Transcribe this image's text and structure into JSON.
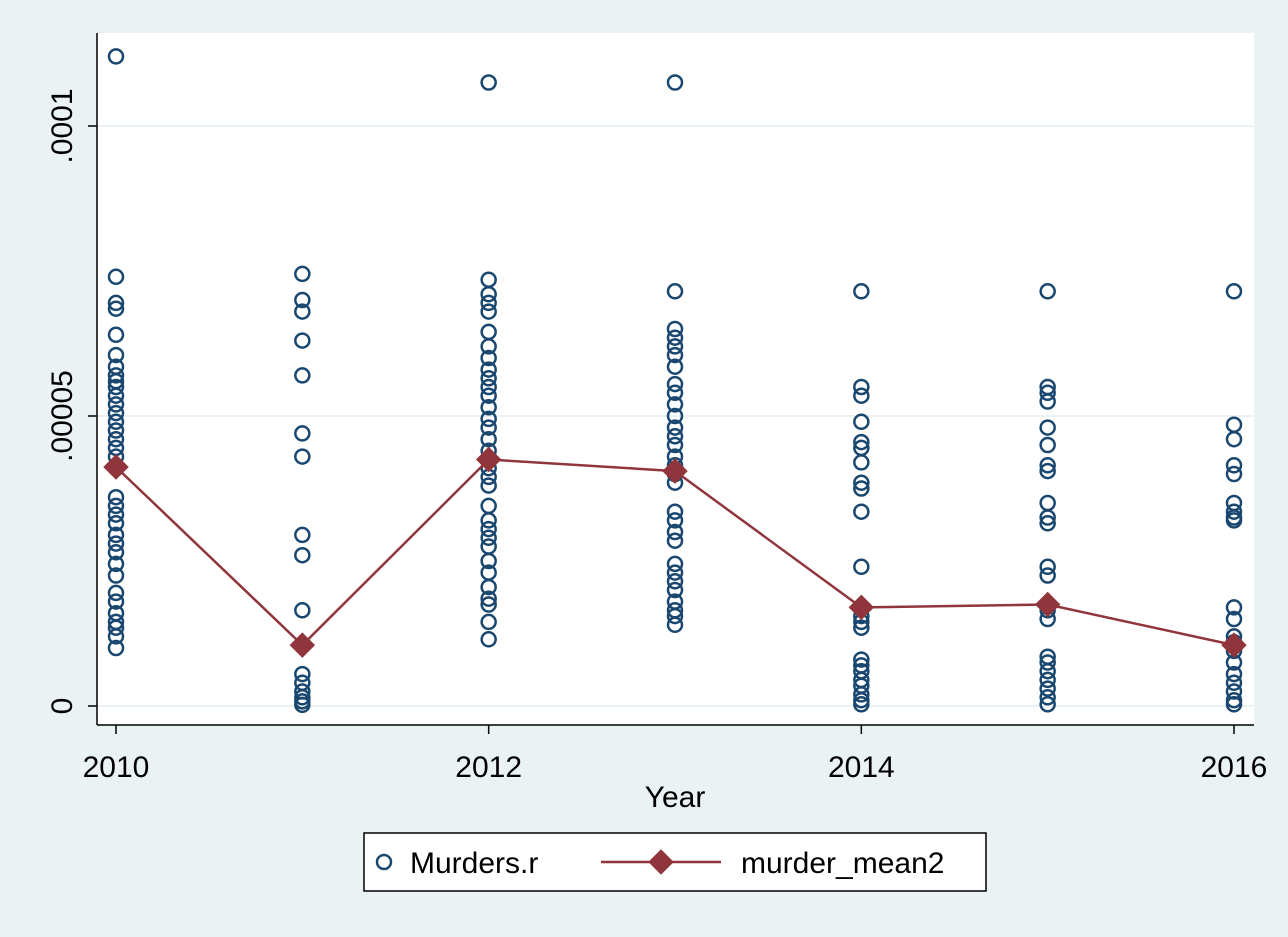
{
  "chart_data": {
    "type": "scatter",
    "title": "",
    "xlabel": "Year",
    "ylabel": "",
    "xlim": [
      2010,
      2016
    ],
    "ylim": [
      0,
      0.0001
    ],
    "x_ticks": [
      2010,
      2012,
      2014,
      2016
    ],
    "x_tick_labels": [
      "2010",
      "2012",
      "2014",
      "2016"
    ],
    "y_ticks": [
      0,
      5e-05,
      0.0001
    ],
    "y_tick_labels": [
      "0",
      ".00005",
      ".0001"
    ],
    "grid": true,
    "legend_position": "bottom",
    "colors": {
      "scatter": "#1a476f",
      "line": "#90353b",
      "background": "#eaf2f3",
      "plot_bg": "#ffffff",
      "grid": "#eaf2f3"
    },
    "series": [
      {
        "name": "Murders.r",
        "type": "scatter",
        "marker": "hollow-circle",
        "points": [
          [
            2010,
            0.000112
          ],
          [
            2010,
            7.4e-05
          ],
          [
            2010,
            6.95e-05
          ],
          [
            2010,
            6.85e-05
          ],
          [
            2010,
            6.4e-05
          ],
          [
            2010,
            6.05e-05
          ],
          [
            2010,
            5.85e-05
          ],
          [
            2010,
            5.7e-05
          ],
          [
            2010,
            5.6e-05
          ],
          [
            2010,
            5.5e-05
          ],
          [
            2010,
            5.35e-05
          ],
          [
            2010,
            5.2e-05
          ],
          [
            2010,
            5.05e-05
          ],
          [
            2010,
            4.9e-05
          ],
          [
            2010,
            4.75e-05
          ],
          [
            2010,
            4.6e-05
          ],
          [
            2010,
            4.45e-05
          ],
          [
            2010,
            4.3e-05
          ],
          [
            2010,
            4.1e-05
          ],
          [
            2010,
            3.6e-05
          ],
          [
            2010,
            3.45e-05
          ],
          [
            2010,
            3.3e-05
          ],
          [
            2010,
            3.15e-05
          ],
          [
            2010,
            2.95e-05
          ],
          [
            2010,
            2.8e-05
          ],
          [
            2010,
            2.65e-05
          ],
          [
            2010,
            2.45e-05
          ],
          [
            2010,
            2.25e-05
          ],
          [
            2010,
            1.95e-05
          ],
          [
            2010,
            1.8e-05
          ],
          [
            2010,
            1.6e-05
          ],
          [
            2010,
            1.45e-05
          ],
          [
            2010,
            1.35e-05
          ],
          [
            2010,
            1.2e-05
          ],
          [
            2010,
            1e-05
          ],
          [
            2011,
            7.45e-05
          ],
          [
            2011,
            7e-05
          ],
          [
            2011,
            6.8e-05
          ],
          [
            2011,
            6.3e-05
          ],
          [
            2011,
            5.7e-05
          ],
          [
            2011,
            4.7e-05
          ],
          [
            2011,
            4.3e-05
          ],
          [
            2011,
            2.95e-05
          ],
          [
            2011,
            2.6e-05
          ],
          [
            2011,
            1.65e-05
          ],
          [
            2011,
            5.5e-06
          ],
          [
            2011,
            4e-06
          ],
          [
            2011,
            2.5e-06
          ],
          [
            2011,
            1.5e-06
          ],
          [
            2011,
            8e-07
          ],
          [
            2011,
            2e-07
          ],
          [
            2012,
            0.0001075
          ],
          [
            2012,
            7.35e-05
          ],
          [
            2012,
            7.1e-05
          ],
          [
            2012,
            6.95e-05
          ],
          [
            2012,
            6.8e-05
          ],
          [
            2012,
            6.45e-05
          ],
          [
            2012,
            6.2e-05
          ],
          [
            2012,
            6e-05
          ],
          [
            2012,
            5.8e-05
          ],
          [
            2012,
            5.65e-05
          ],
          [
            2012,
            5.5e-05
          ],
          [
            2012,
            5.35e-05
          ],
          [
            2012,
            5.15e-05
          ],
          [
            2012,
            4.95e-05
          ],
          [
            2012,
            4.8e-05
          ],
          [
            2012,
            4.6e-05
          ],
          [
            2012,
            4.4e-05
          ],
          [
            2012,
            4.25e-05
          ],
          [
            2012,
            4.1e-05
          ],
          [
            2012,
            3.95e-05
          ],
          [
            2012,
            3.8e-05
          ],
          [
            2012,
            3.45e-05
          ],
          [
            2012,
            3.2e-05
          ],
          [
            2012,
            3.05e-05
          ],
          [
            2012,
            2.9e-05
          ],
          [
            2012,
            2.75e-05
          ],
          [
            2012,
            2.5e-05
          ],
          [
            2012,
            2.3e-05
          ],
          [
            2012,
            2.05e-05
          ],
          [
            2012,
            1.85e-05
          ],
          [
            2012,
            1.75e-05
          ],
          [
            2012,
            1.45e-05
          ],
          [
            2012,
            1.15e-05
          ],
          [
            2013,
            0.0001075
          ],
          [
            2013,
            7.15e-05
          ],
          [
            2013,
            6.5e-05
          ],
          [
            2013,
            6.35e-05
          ],
          [
            2013,
            6.2e-05
          ],
          [
            2013,
            6.05e-05
          ],
          [
            2013,
            5.85e-05
          ],
          [
            2013,
            5.55e-05
          ],
          [
            2013,
            5.4e-05
          ],
          [
            2013,
            5.2e-05
          ],
          [
            2013,
            5e-05
          ],
          [
            2013,
            4.8e-05
          ],
          [
            2013,
            4.65e-05
          ],
          [
            2013,
            4.5e-05
          ],
          [
            2013,
            4.3e-05
          ],
          [
            2013,
            4.15e-05
          ],
          [
            2013,
            4e-05
          ],
          [
            2013,
            3.85e-05
          ],
          [
            2013,
            3.35e-05
          ],
          [
            2013,
            3.2e-05
          ],
          [
            2013,
            3e-05
          ],
          [
            2013,
            2.85e-05
          ],
          [
            2013,
            2.45e-05
          ],
          [
            2013,
            2.3e-05
          ],
          [
            2013,
            2.15e-05
          ],
          [
            2013,
            2e-05
          ],
          [
            2013,
            1.8e-05
          ],
          [
            2013,
            1.65e-05
          ],
          [
            2013,
            1.55e-05
          ],
          [
            2013,
            1.4e-05
          ],
          [
            2014,
            7.15e-05
          ],
          [
            2014,
            5.5e-05
          ],
          [
            2014,
            5.35e-05
          ],
          [
            2014,
            4.9e-05
          ],
          [
            2014,
            4.55e-05
          ],
          [
            2014,
            4.45e-05
          ],
          [
            2014,
            4.2e-05
          ],
          [
            2014,
            3.85e-05
          ],
          [
            2014,
            3.75e-05
          ],
          [
            2014,
            3.35e-05
          ],
          [
            2014,
            2.4e-05
          ],
          [
            2014,
            1.55e-05
          ],
          [
            2014,
            1.45e-05
          ],
          [
            2014,
            1.35e-05
          ],
          [
            2014,
            8e-06
          ],
          [
            2014,
            7e-06
          ],
          [
            2014,
            6e-06
          ],
          [
            2014,
            4.5e-06
          ],
          [
            2014,
            3.5e-06
          ],
          [
            2014,
            2e-06
          ],
          [
            2014,
            1e-06
          ],
          [
            2014,
            3e-07
          ],
          [
            2015,
            7.15e-05
          ],
          [
            2015,
            5.5e-05
          ],
          [
            2015,
            5.4e-05
          ],
          [
            2015,
            5.25e-05
          ],
          [
            2015,
            4.8e-05
          ],
          [
            2015,
            4.5e-05
          ],
          [
            2015,
            4.15e-05
          ],
          [
            2015,
            4.05e-05
          ],
          [
            2015,
            3.5e-05
          ],
          [
            2015,
            3.25e-05
          ],
          [
            2015,
            3.15e-05
          ],
          [
            2015,
            2.4e-05
          ],
          [
            2015,
            2.25e-05
          ],
          [
            2015,
            1.65e-05
          ],
          [
            2015,
            1.5e-05
          ],
          [
            2015,
            8.5e-06
          ],
          [
            2015,
            7.5e-06
          ],
          [
            2015,
            6e-06
          ],
          [
            2015,
            4.5e-06
          ],
          [
            2015,
            3e-06
          ],
          [
            2015,
            1.5e-06
          ],
          [
            2015,
            3e-07
          ],
          [
            2016,
            7.15e-05
          ],
          [
            2016,
            4.85e-05
          ],
          [
            2016,
            4.6e-05
          ],
          [
            2016,
            4.15e-05
          ],
          [
            2016,
            4e-05
          ],
          [
            2016,
            3.5e-05
          ],
          [
            2016,
            3.35e-05
          ],
          [
            2016,
            3.25e-05
          ],
          [
            2016,
            3.2e-05
          ],
          [
            2016,
            1.7e-05
          ],
          [
            2016,
            1.5e-05
          ],
          [
            2016,
            1.2e-05
          ],
          [
            2016,
            1.1e-05
          ],
          [
            2016,
            9.5e-06
          ],
          [
            2016,
            7.5e-06
          ],
          [
            2016,
            5.5e-06
          ],
          [
            2016,
            4e-06
          ],
          [
            2016,
            2.5e-06
          ],
          [
            2016,
            1e-06
          ],
          [
            2016,
            3e-07
          ]
        ]
      },
      {
        "name": "murder_mean2",
        "type": "line",
        "marker": "filled-diamond",
        "x": [
          2010,
          2011,
          2012,
          2013,
          2014,
          2015,
          2016
        ],
        "values": [
          4.12e-05,
          1.05e-05,
          4.25e-05,
          4.05e-05,
          1.7e-05,
          1.75e-05,
          1.05e-05
        ]
      }
    ]
  }
}
